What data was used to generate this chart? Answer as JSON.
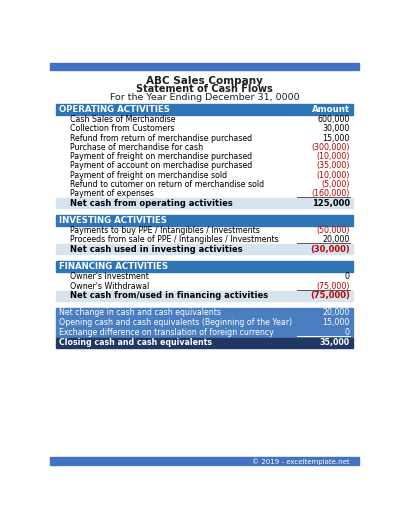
{
  "title_lines": [
    "ABC Sales Company",
    "Statement of Cash Flows",
    "For the Year Ending December 31, 0000"
  ],
  "top_bar_color": "#4472C4",
  "header_bg_color": "#2E75B6",
  "header_text_color": "#FFFFFF",
  "subtotal_bg_color": "#D6E4F0",
  "subtotal_text_color": "#000000",
  "negative_color": "#C00000",
  "positive_color": "#000000",
  "body_bg_color": "#FFFFFF",
  "footer_text": "© 2019 - exceltemplate.net",
  "sections": [
    {
      "header": "OPERATING ACTIVITIES",
      "amount_label": "Amount",
      "rows": [
        {
          "label": "Cash Sales of Merchandise",
          "value": "600,000",
          "negative": false
        },
        {
          "label": "Collection from Customers",
          "value": "30,000",
          "negative": false
        },
        {
          "label": "Refund from return of merchandise purchased",
          "value": "15,000",
          "negative": false
        },
        {
          "label": "Purchase of merchandise for cash",
          "value": "(300,000)",
          "negative": true
        },
        {
          "label": "Payment of freight on merchandise purchased",
          "value": "(10,000)",
          "negative": true
        },
        {
          "label": "Payment of account on merchadise purchased",
          "value": "(35,000)",
          "negative": true
        },
        {
          "label": "Payment of freight on merchandise sold",
          "value": "(10,000)",
          "negative": true
        },
        {
          "label": "Refund to cutomer on return of merchandise sold",
          "value": "(5,000)",
          "negative": true
        },
        {
          "label": "Payment of expenses",
          "value": "(160,000)",
          "negative": true
        }
      ],
      "subtotal_label": "Net cash from operating activities",
      "subtotal_value": "125,000",
      "subtotal_negative": false
    },
    {
      "header": "INVESTING ACTIVITIES",
      "amount_label": null,
      "rows": [
        {
          "label": "Payments to buy PPE / Intangibles / Investments",
          "value": "(50,000)",
          "negative": true
        },
        {
          "label": "Proceeds from sale of PPE / Intangibles / Investments",
          "value": "20,000",
          "negative": false
        }
      ],
      "subtotal_label": "Net cash used in investing activities",
      "subtotal_value": "(30,000)",
      "subtotal_negative": true
    },
    {
      "header": "FINANCING ACTIVITIES",
      "amount_label": null,
      "rows": [
        {
          "label": "Owner's Investment",
          "value": "0",
          "negative": false
        },
        {
          "label": "Owner's Withdrawal",
          "value": "(75,000)",
          "negative": true
        }
      ],
      "subtotal_label": "Net cash from/used in financing activities",
      "subtotal_value": "(75,000)",
      "subtotal_negative": true
    }
  ],
  "summary_rows": [
    {
      "label": "Net change in cash and cash equivalents",
      "value": "20,000",
      "negative": false,
      "is_closing": false
    },
    {
      "label": "Opening cash and cash equivalents (Beginning of the Year)",
      "value": "15,000",
      "negative": false,
      "is_closing": false
    },
    {
      "label": "Exchange difference on translation of foreign currency",
      "value": "0",
      "negative": false,
      "is_closing": false
    },
    {
      "label": "Closing cash and cash equivalents",
      "value": "35,000",
      "negative": false,
      "is_closing": true
    }
  ]
}
